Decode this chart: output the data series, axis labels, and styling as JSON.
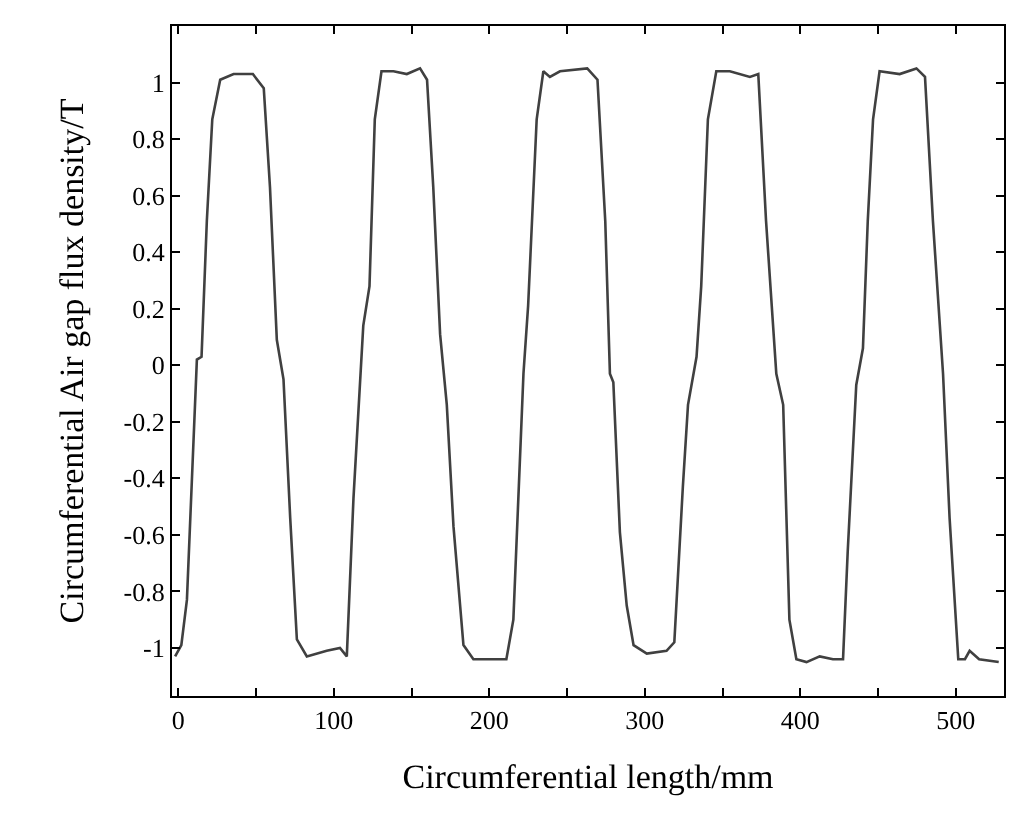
{
  "chart_data": {
    "type": "line",
    "xlabel": "Circumferential length/mm",
    "ylabel": "Circumferential Air gap flux density/T",
    "x": [
      -2,
      2,
      5.6,
      12,
      15,
      18.4,
      21.9,
      27,
      35.6,
      48,
      55,
      59,
      63.4,
      67.7,
      72,
      76.3,
      82.7,
      95.5,
      104,
      108.4,
      112.7,
      119,
      123,
      126.4,
      130.7,
      138.4,
      147,
      155.5,
      160,
      164,
      168.4,
      172.7,
      177,
      183.4,
      189.8,
      211,
      215.5,
      222,
      225,
      230.5,
      234.8,
      239,
      245.5,
      263,
      269.6,
      274.6,
      277.6,
      279.8,
      284,
      288.4,
      292.8,
      301.3,
      314,
      319,
      324.5,
      327.8,
      333.3,
      336.3,
      340.6,
      346,
      354.7,
      367.6,
      373,
      378,
      384.6,
      389,
      393,
      397.5,
      404,
      412.5,
      421,
      427.5,
      430.5,
      436,
      440.3,
      443.4,
      446.8,
      451,
      463.9,
      474.7,
      480.2,
      485.3,
      491.8,
      496,
      501.6,
      505.9,
      508.9,
      515,
      527.6
    ],
    "series": [
      {
        "color": "#404040",
        "values": [
          -1.03,
          -0.99,
          -0.83,
          0.02,
          0.03,
          0.51,
          0.87,
          1.01,
          1.03,
          1.03,
          0.98,
          0.63,
          0.09,
          -0.05,
          -0.54,
          -0.97,
          -1.03,
          -1.01,
          -1.0,
          -1.03,
          -0.47,
          0.14,
          0.28,
          0.87,
          1.04,
          1.04,
          1.03,
          1.05,
          1.01,
          0.63,
          0.11,
          -0.14,
          -0.57,
          -0.99,
          -1.04,
          -1.04,
          -0.9,
          -0.03,
          0.21,
          0.87,
          1.04,
          1.02,
          1.04,
          1.05,
          1.01,
          0.51,
          -0.03,
          -0.06,
          -0.59,
          -0.85,
          -0.99,
          -1.02,
          -1.01,
          -0.98,
          -0.43,
          -0.14,
          0.03,
          0.28,
          0.87,
          1.04,
          1.04,
          1.02,
          1.03,
          0.51,
          -0.03,
          -0.14,
          -0.9,
          -1.04,
          -1.05,
          -1.03,
          -1.04,
          -1.04,
          -0.66,
          -0.07,
          0.06,
          0.51,
          0.87,
          1.04,
          1.03,
          1.05,
          1.02,
          0.51,
          -0.03,
          -0.54,
          -1.04,
          -1.04,
          -1.01,
          -1.04,
          -1.05
        ]
      }
    ],
    "xlim": [
      -4,
      531
    ],
    "ylim": [
      -1.17,
      1.2
    ],
    "xticks": [
      0,
      {
        "value": 50,
        "label": null
      },
      100,
      {
        "value": 150,
        "label": null
      },
      200,
      {
        "value": 250,
        "label": null
      },
      300,
      {
        "value": 350,
        "label": null
      },
      400,
      {
        "value": 450,
        "label": null
      },
      500
    ],
    "yticks": [
      -1,
      -0.8,
      -0.6,
      -0.4,
      -0.2,
      0,
      0.2,
      0.4,
      0.6,
      0.8,
      1
    ],
    "marker": "none",
    "line_style": "solid"
  }
}
